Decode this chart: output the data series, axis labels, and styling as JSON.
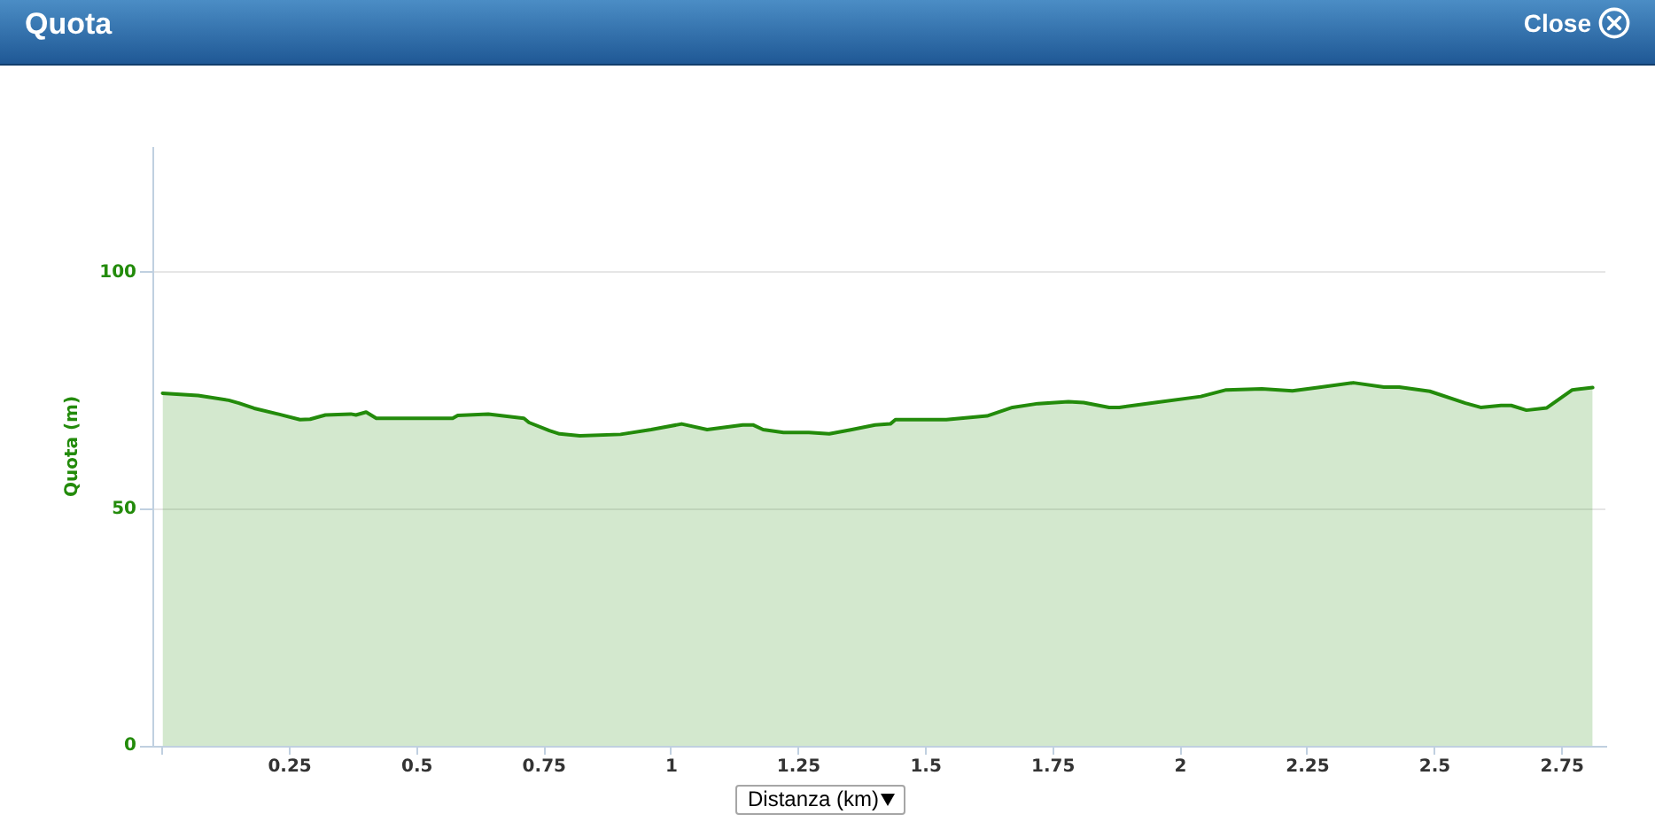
{
  "chart_data": {
    "type": "area",
    "title": "Quota",
    "xlabel": "Distanza (km)",
    "ylabel": "Quota (m)",
    "annotations": [
      "Close"
    ],
    "x": [
      0,
      0.07,
      0.13,
      0.15,
      0.18,
      0.23,
      0.27,
      0.29,
      0.32,
      0.37,
      0.38,
      0.4,
      0.42,
      0.49,
      0.57,
      0.58,
      0.64,
      0.71,
      0.72,
      0.76,
      0.78,
      0.82,
      0.9,
      0.96,
      1.02,
      1.07,
      1.14,
      1.16,
      1.18,
      1.22,
      1.27,
      1.31,
      1.35,
      1.4,
      1.43,
      1.44,
      1.54,
      1.62,
      1.67,
      1.72,
      1.78,
      1.81,
      1.86,
      1.88,
      1.95,
      2.04,
      2.09,
      2.16,
      2.22,
      2.27,
      2.34,
      2.4,
      2.43,
      2.49,
      2.56,
      2.59,
      2.63,
      2.65,
      2.68,
      2.72,
      2.77,
      2.81
    ],
    "values": [
      74.5,
      74,
      73,
      72.4,
      71.3,
      70,
      68.9,
      69,
      69.9,
      70.1,
      69.9,
      70.5,
      69.2,
      69.2,
      69.2,
      69.8,
      70.1,
      69.2,
      68.3,
      66.6,
      65.9,
      65.5,
      65.8,
      66.8,
      68,
      66.8,
      67.8,
      67.8,
      66.8,
      66.2,
      66.2,
      65.9,
      66.7,
      67.8,
      68,
      68.9,
      68.9,
      69.7,
      71.5,
      72.3,
      72.7,
      72.5,
      71.5,
      71.5,
      72.5,
      73.8,
      75.2,
      75.4,
      75,
      75.7,
      76.7,
      75.8,
      75.8,
      74.9,
      72.4,
      71.5,
      71.9,
      71.9,
      70.9,
      71.4,
      75.2,
      75.7
    ],
    "color": "#238b0b",
    "xlim": [
      -0.02,
      2.835
    ],
    "xticks": [
      {
        "value": 0,
        "label": null
      },
      0.25,
      0.5,
      0.75,
      1,
      1.25,
      1.5,
      1.75,
      2,
      2.25,
      2.5,
      2.75
    ],
    "ylim": [
      0,
      126.5
    ],
    "yticks": [
      0,
      50,
      100
    ],
    "grid": "y"
  }
}
